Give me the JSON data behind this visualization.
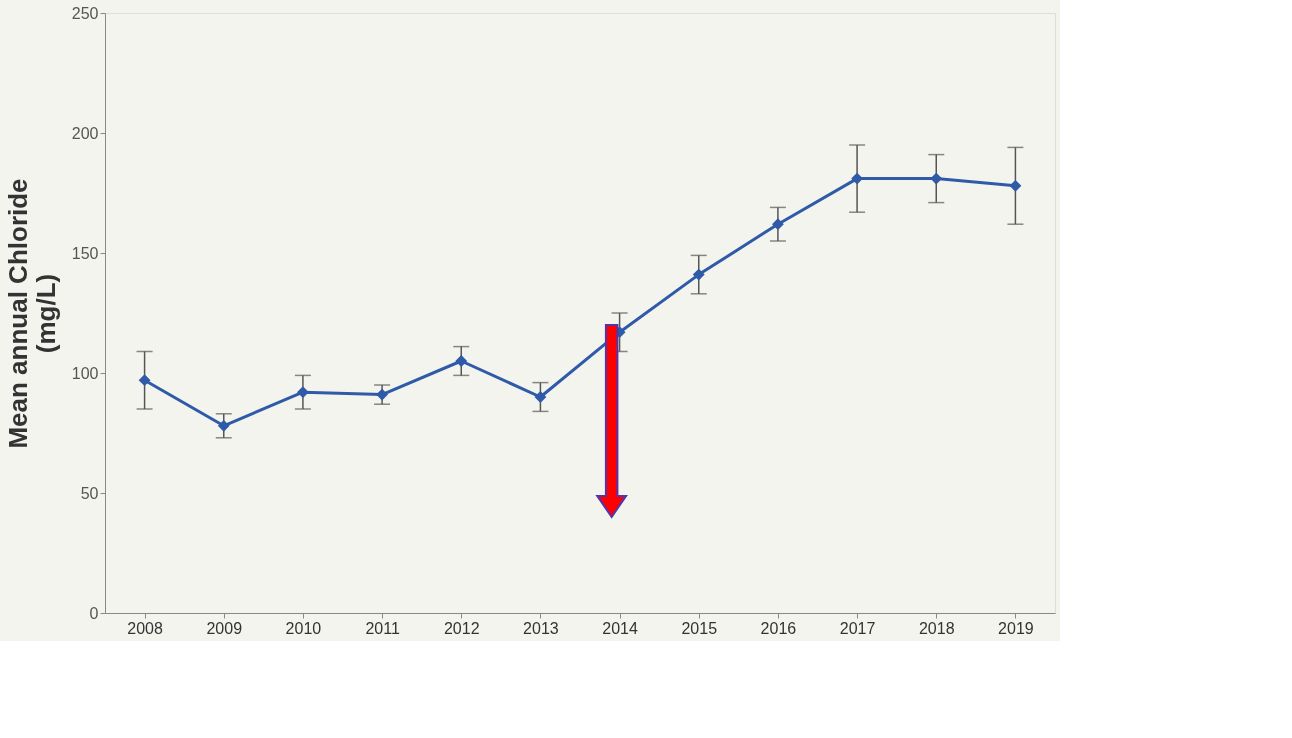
{
  "chart_data": {
    "type": "line",
    "ylabel": "Mean annual Chloride\n(mg/L)",
    "categories": [
      "2008",
      "2009",
      "2010",
      "2011",
      "2012",
      "2013",
      "2014",
      "2015",
      "2016",
      "2017",
      "2018",
      "2019"
    ],
    "series": [
      {
        "color": "#2f5aa8",
        "values": [
          97,
          78,
          92,
          91,
          105,
          90,
          117,
          141,
          162,
          181,
          181,
          178
        ],
        "errors": [
          12,
          5,
          7,
          4,
          6,
          6,
          8,
          8,
          7,
          14,
          10,
          16
        ]
      }
    ],
    "ylim": [
      0,
      250
    ],
    "yticks": [
      0,
      50,
      100,
      150,
      200,
      250
    ],
    "grid": false,
    "marker": "diamond",
    "line_style": "solid"
  }
}
